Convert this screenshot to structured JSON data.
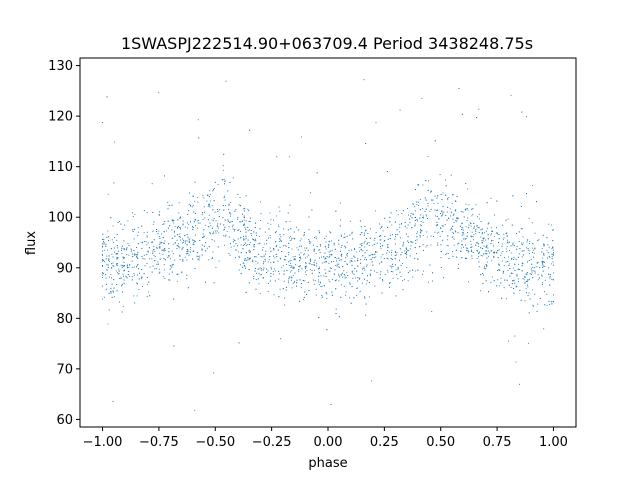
{
  "chart_data": {
    "type": "scatter",
    "title": "1SWASPJ222514.90+063709.4 Period 3438248.75s",
    "xlabel": "phase",
    "ylabel": "flux",
    "xlim": [
      -1.1,
      1.1
    ],
    "ylim": [
      58.5,
      131.5
    ],
    "xticks": [
      -1.0,
      -0.75,
      -0.5,
      -0.25,
      0.0,
      0.25,
      0.5,
      0.75,
      1.0
    ],
    "xtick_labels": [
      "−1.00",
      "−0.75",
      "−0.50",
      "−0.25",
      "0.00",
      "0.25",
      "0.50",
      "0.75",
      "1.00"
    ],
    "yticks": [
      60,
      70,
      80,
      90,
      100,
      110,
      120,
      130
    ],
    "ytick_labels": [
      "60",
      "70",
      "80",
      "90",
      "100",
      "110",
      "120",
      "130"
    ],
    "grid": false,
    "marker_color": "#1f77b4",
    "series": [
      {
        "x_range": [
          -1.0,
          1.0
        ],
        "symmetric_about_zero": true,
        "envelope": {
          "phase": [
            0.0,
            0.05,
            0.1,
            0.15,
            0.2,
            0.25,
            0.3,
            0.35,
            0.4,
            0.45,
            0.5,
            0.55,
            0.6,
            0.65,
            0.7,
            0.75,
            0.8,
            0.85,
            0.9,
            0.95,
            1.0
          ],
          "center": [
            91,
            91,
            91.5,
            91,
            92,
            93,
            93,
            95,
            98,
            100,
            100,
            99,
            97,
            96,
            94,
            93,
            92,
            92,
            91,
            90,
            91
          ],
          "spread": [
            7,
            7,
            7,
            7,
            7,
            7,
            7,
            7,
            8,
            9,
            9,
            8,
            7,
            7,
            7,
            7,
            7,
            7,
            7,
            7,
            7
          ]
        },
        "outlier_range": [
          61,
          128
        ]
      }
    ]
  }
}
